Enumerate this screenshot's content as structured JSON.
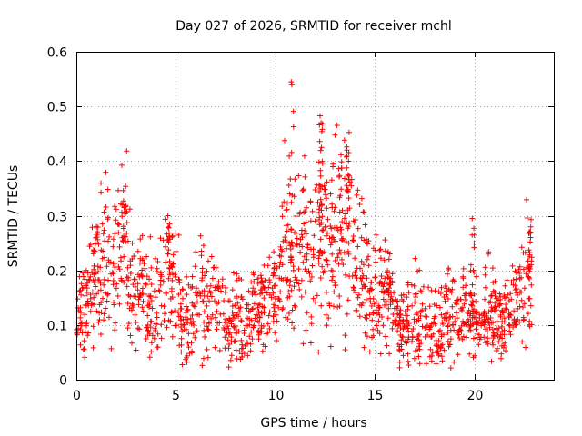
{
  "chart_data": {
    "type": "scatter",
    "title": "Day 027 of 2026, SRMTID for receiver mchl",
    "xlabel": "GPS time / hours",
    "ylabel": "SRMTID / TECUs",
    "xlim": [
      0,
      24
    ],
    "ylim": [
      0,
      0.6
    ],
    "xticks": [
      0,
      5,
      10,
      15,
      20
    ],
    "xtick_labels": [
      "0",
      "5",
      "10",
      "15",
      "20"
    ],
    "yticks": [
      0,
      0.1,
      0.2,
      0.3,
      0.4,
      0.5,
      0.6
    ],
    "ytick_labels": [
      "0",
      "0.1",
      "0.2",
      "0.3",
      "0.4",
      "0.5",
      "0.6"
    ],
    "grid": true,
    "marker": "+",
    "marker_color": "#ff0000",
    "x_range_of_data": [
      0,
      22.9
    ],
    "series": [
      {
        "name": "SRMTID",
        "x": [
          0.0,
          0.25,
          0.5,
          0.75,
          1.0,
          1.25,
          1.5,
          1.75,
          2.0,
          2.25,
          2.5,
          2.75,
          3.0,
          3.25,
          3.5,
          3.75,
          4.0,
          4.25,
          4.5,
          4.75,
          5.0,
          5.25,
          5.5,
          5.75,
          6.0,
          6.25,
          6.5,
          6.75,
          7.0,
          7.25,
          7.5,
          7.75,
          8.0,
          8.25,
          8.5,
          8.75,
          9.0,
          9.25,
          9.5,
          9.75,
          10.0,
          10.25,
          10.5,
          10.75,
          11.0,
          11.25,
          11.5,
          11.75,
          12.0,
          12.25,
          12.5,
          12.75,
          13.0,
          13.25,
          13.5,
          13.75,
          14.0,
          14.25,
          14.5,
          14.75,
          15.0,
          15.25,
          15.5,
          15.75,
          16.0,
          16.25,
          16.5,
          16.75,
          17.0,
          17.25,
          17.5,
          17.75,
          18.0,
          18.25,
          18.5,
          18.75,
          19.0,
          19.25,
          19.5,
          19.75,
          20.0,
          20.25,
          20.5,
          20.75,
          21.0,
          21.25,
          21.5,
          21.75,
          22.0,
          22.25,
          22.5,
          22.75
        ],
        "y": [
          0.12,
          0.11,
          0.14,
          0.17,
          0.19,
          0.21,
          0.22,
          0.2,
          0.22,
          0.24,
          0.26,
          0.17,
          0.15,
          0.16,
          0.15,
          0.14,
          0.13,
          0.15,
          0.17,
          0.18,
          0.16,
          0.13,
          0.11,
          0.12,
          0.13,
          0.15,
          0.14,
          0.16,
          0.15,
          0.13,
          0.11,
          0.1,
          0.12,
          0.11,
          0.1,
          0.11,
          0.12,
          0.13,
          0.12,
          0.14,
          0.17,
          0.2,
          0.25,
          0.22,
          0.2,
          0.24,
          0.26,
          0.2,
          0.22,
          0.28,
          0.25,
          0.22,
          0.27,
          0.3,
          0.26,
          0.3,
          0.24,
          0.2,
          0.18,
          0.16,
          0.15,
          0.14,
          0.17,
          0.15,
          0.13,
          0.1,
          0.11,
          0.1,
          0.12,
          0.11,
          0.12,
          0.1,
          0.09,
          0.08,
          0.1,
          0.11,
          0.12,
          0.1,
          0.13,
          0.11,
          0.12,
          0.1,
          0.11,
          0.13,
          0.12,
          0.1,
          0.11,
          0.12,
          0.13,
          0.14,
          0.17,
          0.2
        ]
      }
    ],
    "peaks": [
      {
        "x": 2.4,
        "y": 0.315
      },
      {
        "x": 4.6,
        "y": 0.3
      },
      {
        "x": 10.8,
        "y": 0.545
      },
      {
        "x": 12.3,
        "y": 0.47
      },
      {
        "x": 13.6,
        "y": 0.42
      },
      {
        "x": 19.9,
        "y": 0.295
      },
      {
        "x": 22.8,
        "y": 0.27
      }
    ]
  }
}
